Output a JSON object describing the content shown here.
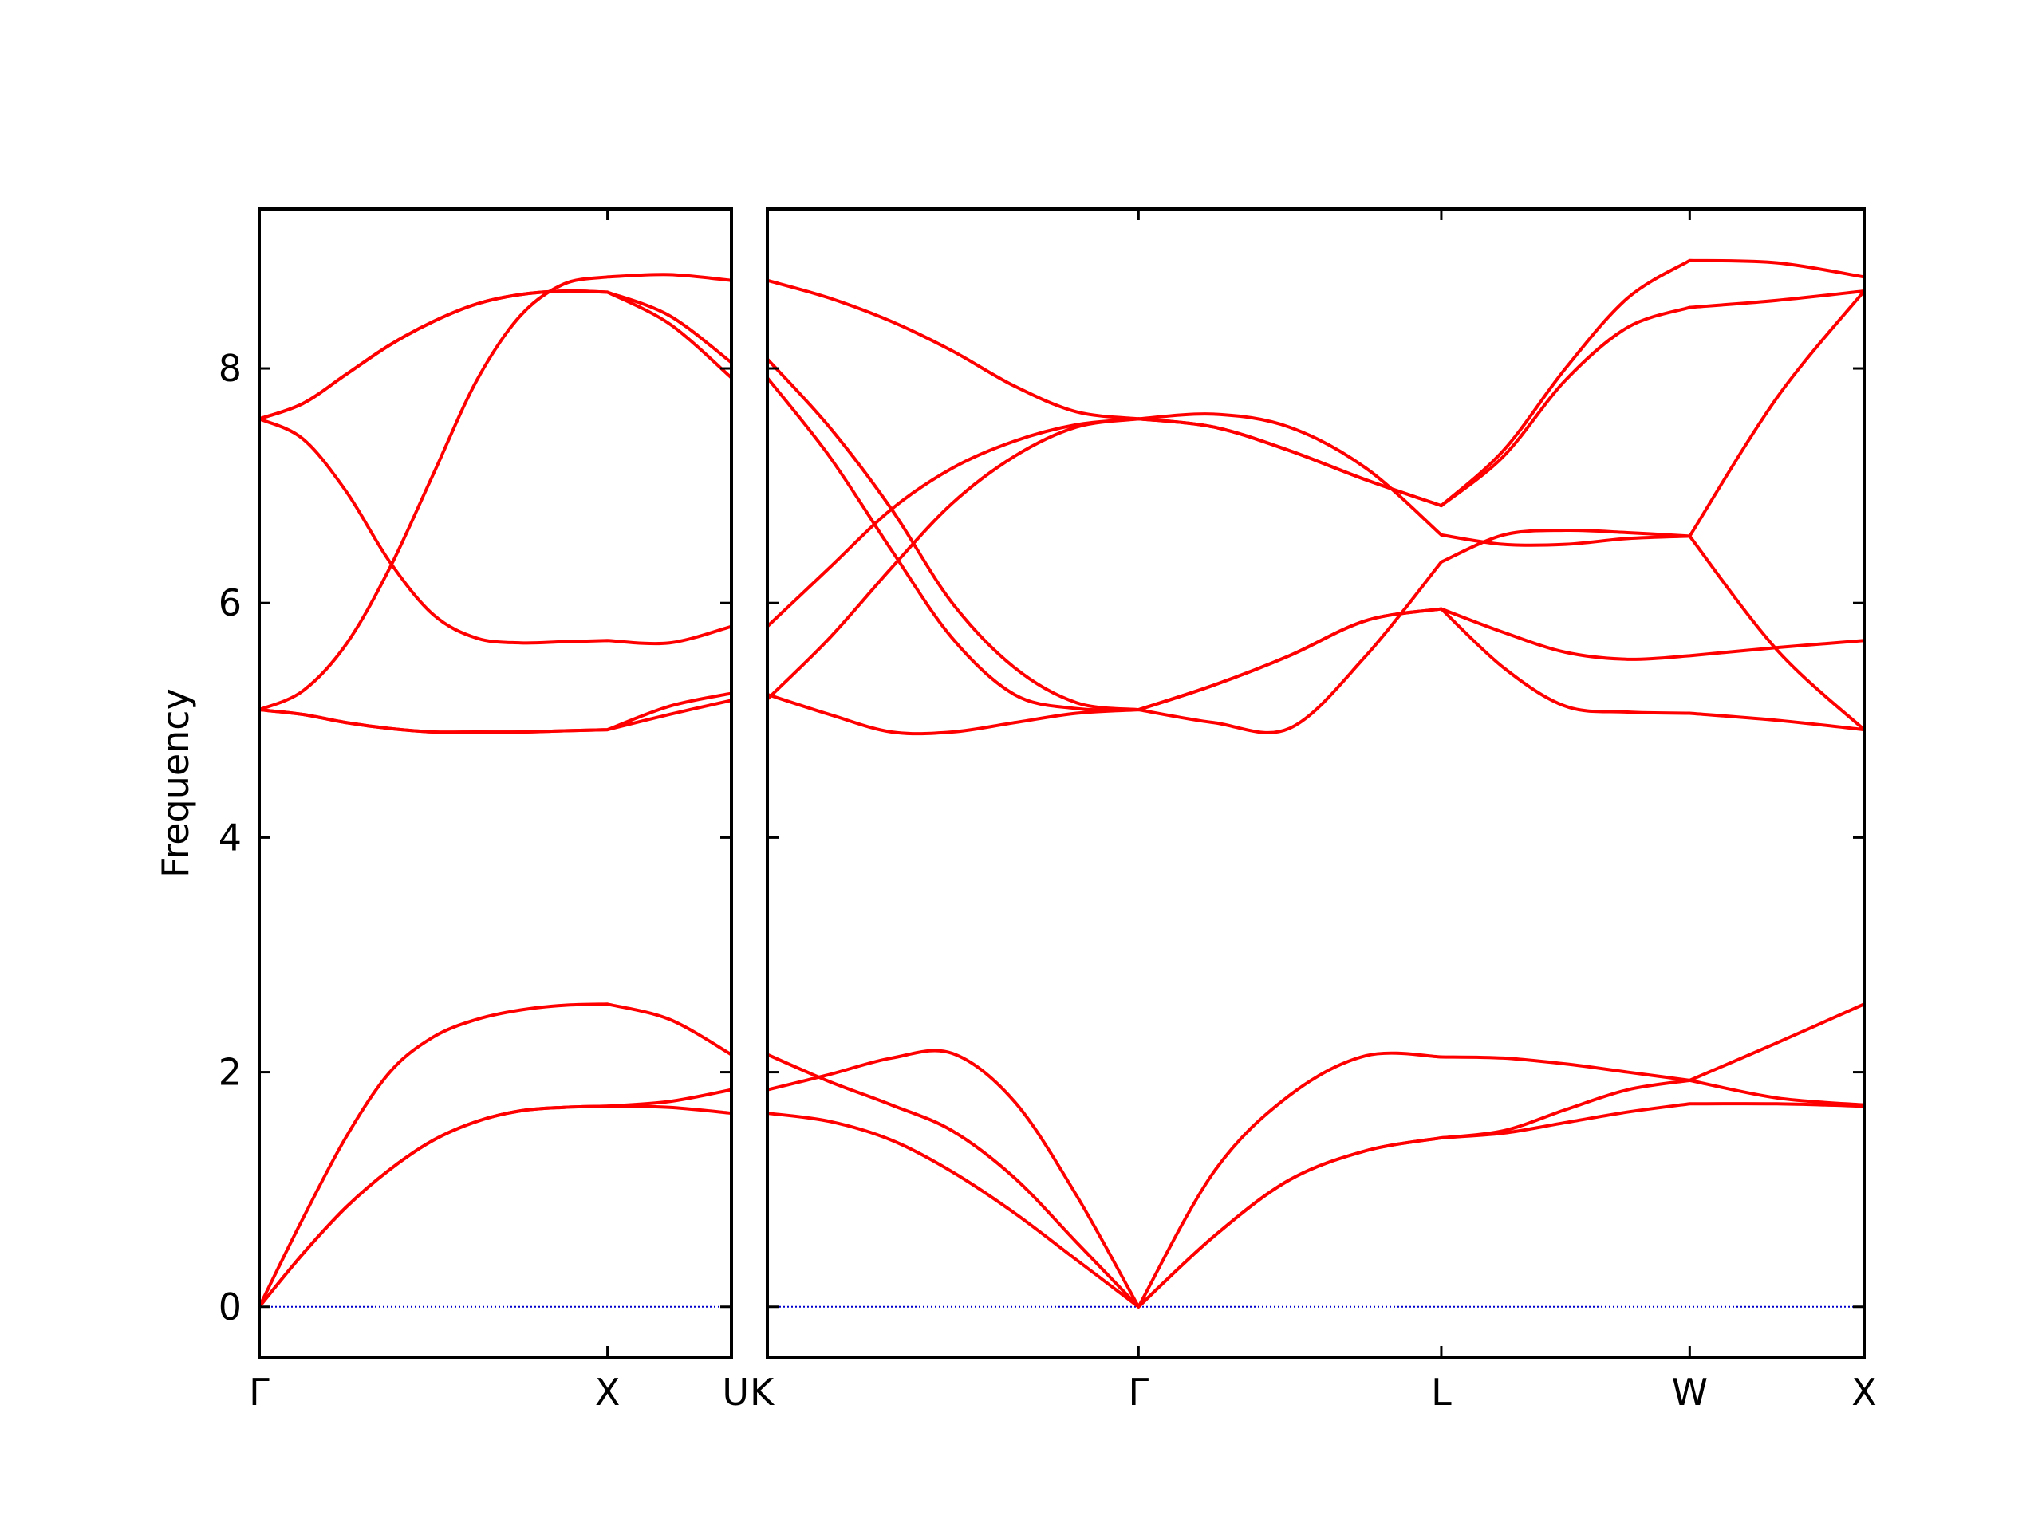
{
  "chart_data": [
    {
      "type": "line",
      "ylabel": "Frequency",
      "x": [
        0,
        0.125,
        0.25,
        0.375,
        0.5,
        0.625,
        0.75,
        0.875,
        1.0,
        1.178,
        1.356
      ],
      "xlim": [
        0,
        1.356
      ],
      "xticks": [
        {
          "value": 0,
          "label": "Γ"
        },
        {
          "value": 1.0,
          "label": "X"
        },
        {
          "value": 1.356,
          "label": "U"
        }
      ],
      "ylim": [
        -0.43,
        9.36
      ],
      "yticks": [
        0,
        2,
        4,
        6,
        8
      ],
      "show_ytick_labels": true,
      "hline": 0,
      "hline_color": "#0000cc",
      "series": [
        {
          "color": "#ff0000",
          "values": [
            0,
            0.45,
            0.85,
            1.17,
            1.42,
            1.58,
            1.67,
            1.7,
            1.71,
            1.7,
            1.65
          ]
        },
        {
          "color": "#ff0000",
          "values": [
            0,
            0.45,
            0.85,
            1.17,
            1.42,
            1.58,
            1.67,
            1.7,
            1.71,
            1.75,
            1.85
          ]
        },
        {
          "color": "#ff0000",
          "values": [
            0,
            0.75,
            1.45,
            2.0,
            2.3,
            2.45,
            2.53,
            2.57,
            2.58,
            2.45,
            2.15
          ]
        },
        {
          "color": "#ff0000",
          "values": [
            5.09,
            5.05,
            4.98,
            4.93,
            4.9,
            4.9,
            4.9,
            4.91,
            4.92,
            5.05,
            5.17
          ]
        },
        {
          "color": "#ff0000",
          "values": [
            5.09,
            5.05,
            4.98,
            4.93,
            4.9,
            4.9,
            4.9,
            4.91,
            4.92,
            5.12,
            5.23
          ]
        },
        {
          "color": "#ff0000",
          "values": [
            5.09,
            5.25,
            5.65,
            6.3,
            7.1,
            7.9,
            8.45,
            8.72,
            8.78,
            8.8,
            8.75
          ]
        },
        {
          "color": "#ff0000",
          "values": [
            7.57,
            7.4,
            6.95,
            6.35,
            5.9,
            5.7,
            5.66,
            5.67,
            5.68,
            5.66,
            5.8
          ]
        },
        {
          "color": "#ff0000",
          "values": [
            7.57,
            7.7,
            7.95,
            8.2,
            8.4,
            8.55,
            8.63,
            8.66,
            8.65,
            8.45,
            8.05
          ]
        },
        {
          "color": "#ff0000",
          "values": [
            7.57,
            7.7,
            7.95,
            8.2,
            8.4,
            8.55,
            8.63,
            8.66,
            8.65,
            8.38,
            7.92
          ]
        }
      ]
    },
    {
      "type": "line",
      "x": [
        0,
        0.178,
        0.356,
        0.53,
        0.708,
        0.886,
        1.064,
        1.28,
        1.496,
        1.716,
        1.932,
        2.11,
        2.288,
        2.466,
        2.644,
        2.894,
        3.144
      ],
      "xlim": [
        0,
        3.144
      ],
      "xticks": [
        {
          "value": 0,
          "label": "K"
        },
        {
          "value": 1.064,
          "label": "Γ"
        },
        {
          "value": 1.932,
          "label": "L"
        },
        {
          "value": 2.644,
          "label": "W"
        },
        {
          "value": 3.144,
          "label": "X"
        }
      ],
      "ylim": [
        -0.43,
        9.36
      ],
      "yticks": [
        0,
        2,
        4,
        6,
        8
      ],
      "show_ytick_labels": false,
      "hline": 0,
      "hline_color": "#0000cc",
      "series": [
        {
          "color": "#ff0000",
          "values": [
            1.65,
            1.58,
            1.42,
            1.15,
            0.8,
            0.4,
            0,
            0.6,
            1.08,
            1.33,
            1.44,
            1.48,
            1.57,
            1.66,
            1.73,
            1.73,
            1.71
          ]
        },
        {
          "color": "#ff0000",
          "values": [
            1.85,
            1.98,
            2.12,
            2.16,
            1.75,
            0.95,
            0,
            1.15,
            1.8,
            2.14,
            2.13,
            2.12,
            2.07,
            2.0,
            1.93,
            2.25,
            2.58
          ]
        },
        {
          "color": "#ff0000",
          "values": [
            2.15,
            1.92,
            1.72,
            1.5,
            1.1,
            0.55,
            0,
            0.6,
            1.08,
            1.33,
            1.44,
            1.5,
            1.68,
            1.85,
            1.93,
            1.78,
            1.72
          ]
        },
        {
          "color": "#ff0000",
          "values": [
            8.75,
            8.6,
            8.4,
            8.15,
            7.85,
            7.63,
            7.57,
            7.61,
            7.5,
            7.15,
            6.58,
            6.5,
            6.5,
            6.55,
            6.57,
            7.75,
            8.66
          ]
        },
        {
          "color": "#ff0000",
          "values": [
            5.8,
            6.3,
            6.8,
            7.15,
            7.38,
            7.52,
            7.57,
            7.5,
            7.3,
            7.05,
            6.83,
            7.3,
            8.0,
            8.6,
            8.92,
            8.9,
            8.78
          ]
        },
        {
          "color": "#ff0000",
          "values": [
            5.18,
            5.7,
            6.3,
            6.85,
            7.25,
            7.5,
            7.57,
            7.5,
            7.3,
            7.05,
            6.83,
            7.25,
            7.9,
            8.35,
            8.52,
            8.58,
            8.66
          ]
        },
        {
          "color": "#ff0000",
          "values": [
            8.08,
            7.5,
            6.8,
            6.0,
            5.45,
            5.15,
            5.09,
            4.98,
            4.93,
            5.55,
            6.35,
            6.58,
            6.62,
            6.6,
            6.57,
            5.6,
            4.92
          ]
        },
        {
          "color": "#ff0000",
          "values": [
            7.92,
            7.25,
            6.45,
            5.7,
            5.22,
            5.1,
            5.09,
            5.3,
            5.55,
            5.85,
            5.95,
            5.75,
            5.58,
            5.52,
            5.55,
            5.62,
            5.68
          ]
        },
        {
          "color": "#ff0000",
          "values": [
            5.22,
            5.05,
            4.9,
            4.9,
            4.98,
            5.06,
            5.09,
            5.3,
            5.55,
            5.85,
            5.95,
            5.45,
            5.12,
            5.07,
            5.06,
            5.0,
            4.92
          ]
        }
      ]
    }
  ]
}
